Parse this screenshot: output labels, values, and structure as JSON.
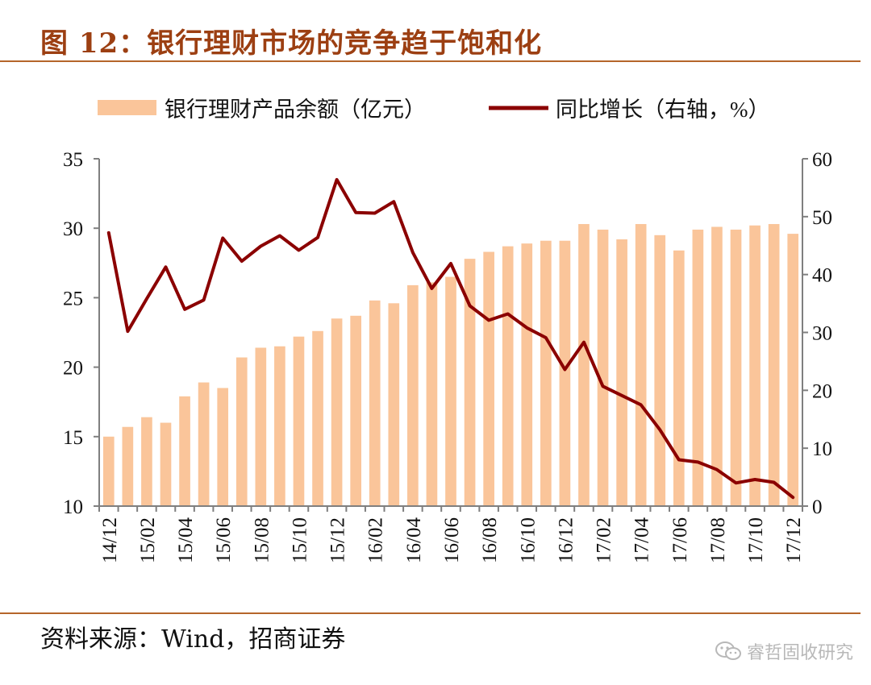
{
  "title": "图 12：银行理财市场的竞争趋于饱和化",
  "source": "资料来源：Wind，招商证券",
  "watermark": "睿哲固收研究",
  "colors": {
    "bar": "#fac59a",
    "line": "#8b0000",
    "title": "#9c3f12",
    "rule": "#b5652a",
    "axis": "#7f7f7f"
  },
  "chart_data": {
    "type": "bar+line",
    "legend": [
      {
        "label": "银行理财产品余额（亿元）",
        "kind": "bar"
      },
      {
        "label": "同比增长（右轴，%）",
        "kind": "line"
      }
    ],
    "legend_position": "top",
    "categories": [
      "14/12",
      "15/01",
      "15/02",
      "15/03",
      "15/04",
      "15/05",
      "15/06",
      "15/07",
      "15/08",
      "15/09",
      "15/10",
      "15/11",
      "15/12",
      "16/01",
      "16/02",
      "16/03",
      "16/04",
      "16/05",
      "16/06",
      "16/07",
      "16/08",
      "16/09",
      "16/10",
      "16/11",
      "16/12",
      "17/01",
      "17/02",
      "17/03",
      "17/04",
      "17/05",
      "17/06",
      "17/07",
      "17/08",
      "17/09",
      "17/10",
      "17/11",
      "17/12"
    ],
    "x_tick_labels": [
      "14/12",
      "15/02",
      "15/04",
      "15/06",
      "15/08",
      "15/10",
      "15/12",
      "16/02",
      "16/04",
      "16/06",
      "16/08",
      "16/10",
      "16/12",
      "17/02",
      "17/04",
      "17/06",
      "17/08",
      "17/10",
      "17/12"
    ],
    "left_axis": {
      "ticks": [
        10,
        15,
        20,
        25,
        30,
        35
      ],
      "range": [
        10,
        35
      ]
    },
    "right_axis": {
      "ticks": [
        0,
        10,
        20,
        30,
        40,
        50,
        60
      ],
      "range": [
        0,
        60
      ]
    },
    "series": [
      {
        "name": "银行理财产品余额（亿元）",
        "axis": "left",
        "values": [
          15.0,
          15.7,
          16.4,
          16.0,
          17.9,
          18.9,
          18.5,
          20.7,
          21.4,
          21.5,
          22.2,
          22.6,
          23.5,
          23.7,
          24.8,
          24.6,
          25.9,
          26.1,
          26.5,
          27.8,
          28.3,
          28.7,
          28.9,
          29.1,
          29.1,
          30.3,
          29.9,
          29.2,
          30.3,
          29.5,
          28.4,
          29.9,
          30.1,
          29.9,
          30.2,
          30.3,
          29.6
        ]
      },
      {
        "name": "同比增长（右轴，%）",
        "axis": "right",
        "values": [
          47.2,
          30.2,
          35.8,
          41.3,
          34.0,
          35.6,
          46.3,
          42.3,
          44.9,
          46.7,
          44.2,
          46.4,
          56.4,
          50.7,
          50.6,
          52.6,
          43.8,
          37.6,
          41.9,
          34.6,
          32.1,
          33.2,
          30.8,
          29.1,
          23.6,
          28.3,
          20.7,
          19.1,
          17.5,
          13.2,
          8.0,
          7.6,
          6.3,
          4.0,
          4.6,
          4.1,
          1.5
        ]
      }
    ]
  }
}
